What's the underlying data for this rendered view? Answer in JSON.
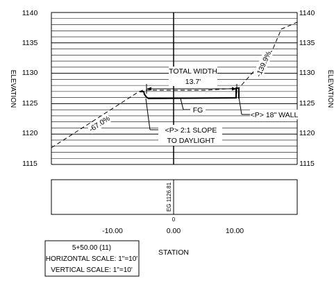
{
  "axes": {
    "y_label": "ELEVATION",
    "x_label": "STATION",
    "elevation_ticks": [
      "1140",
      "1135",
      "1130",
      "1125",
      "1120",
      "1115"
    ],
    "station_ticks": [
      "-10.00",
      "0.00",
      "10.00"
    ],
    "station_zero": "0",
    "elevation_range": [
      1115,
      1140
    ],
    "minor_grid_interval": 1,
    "major_grid_interval": 5
  },
  "annotations": {
    "total_width_label": "TOTAL WIDTH",
    "total_width_value": "13.7'",
    "fg": "FG",
    "wall": "<P> 18\" WALL",
    "slope_line1": "<P> 2:1 SLOPE",
    "slope_line2": "TO DAYLIGHT",
    "left_grade": "-67.0%",
    "right_grade": "-139.9%",
    "station_elevation": "EG 1126.81"
  },
  "info_box": {
    "station": "5+50.00 (11)",
    "horizontal_scale": "HORIZONTAL SCALE: 1\"=10'",
    "vertical_scale": "VERTICAL SCALE: 1\"=10'"
  },
  "colors": {
    "line": "#000000",
    "background": "#ffffff"
  }
}
